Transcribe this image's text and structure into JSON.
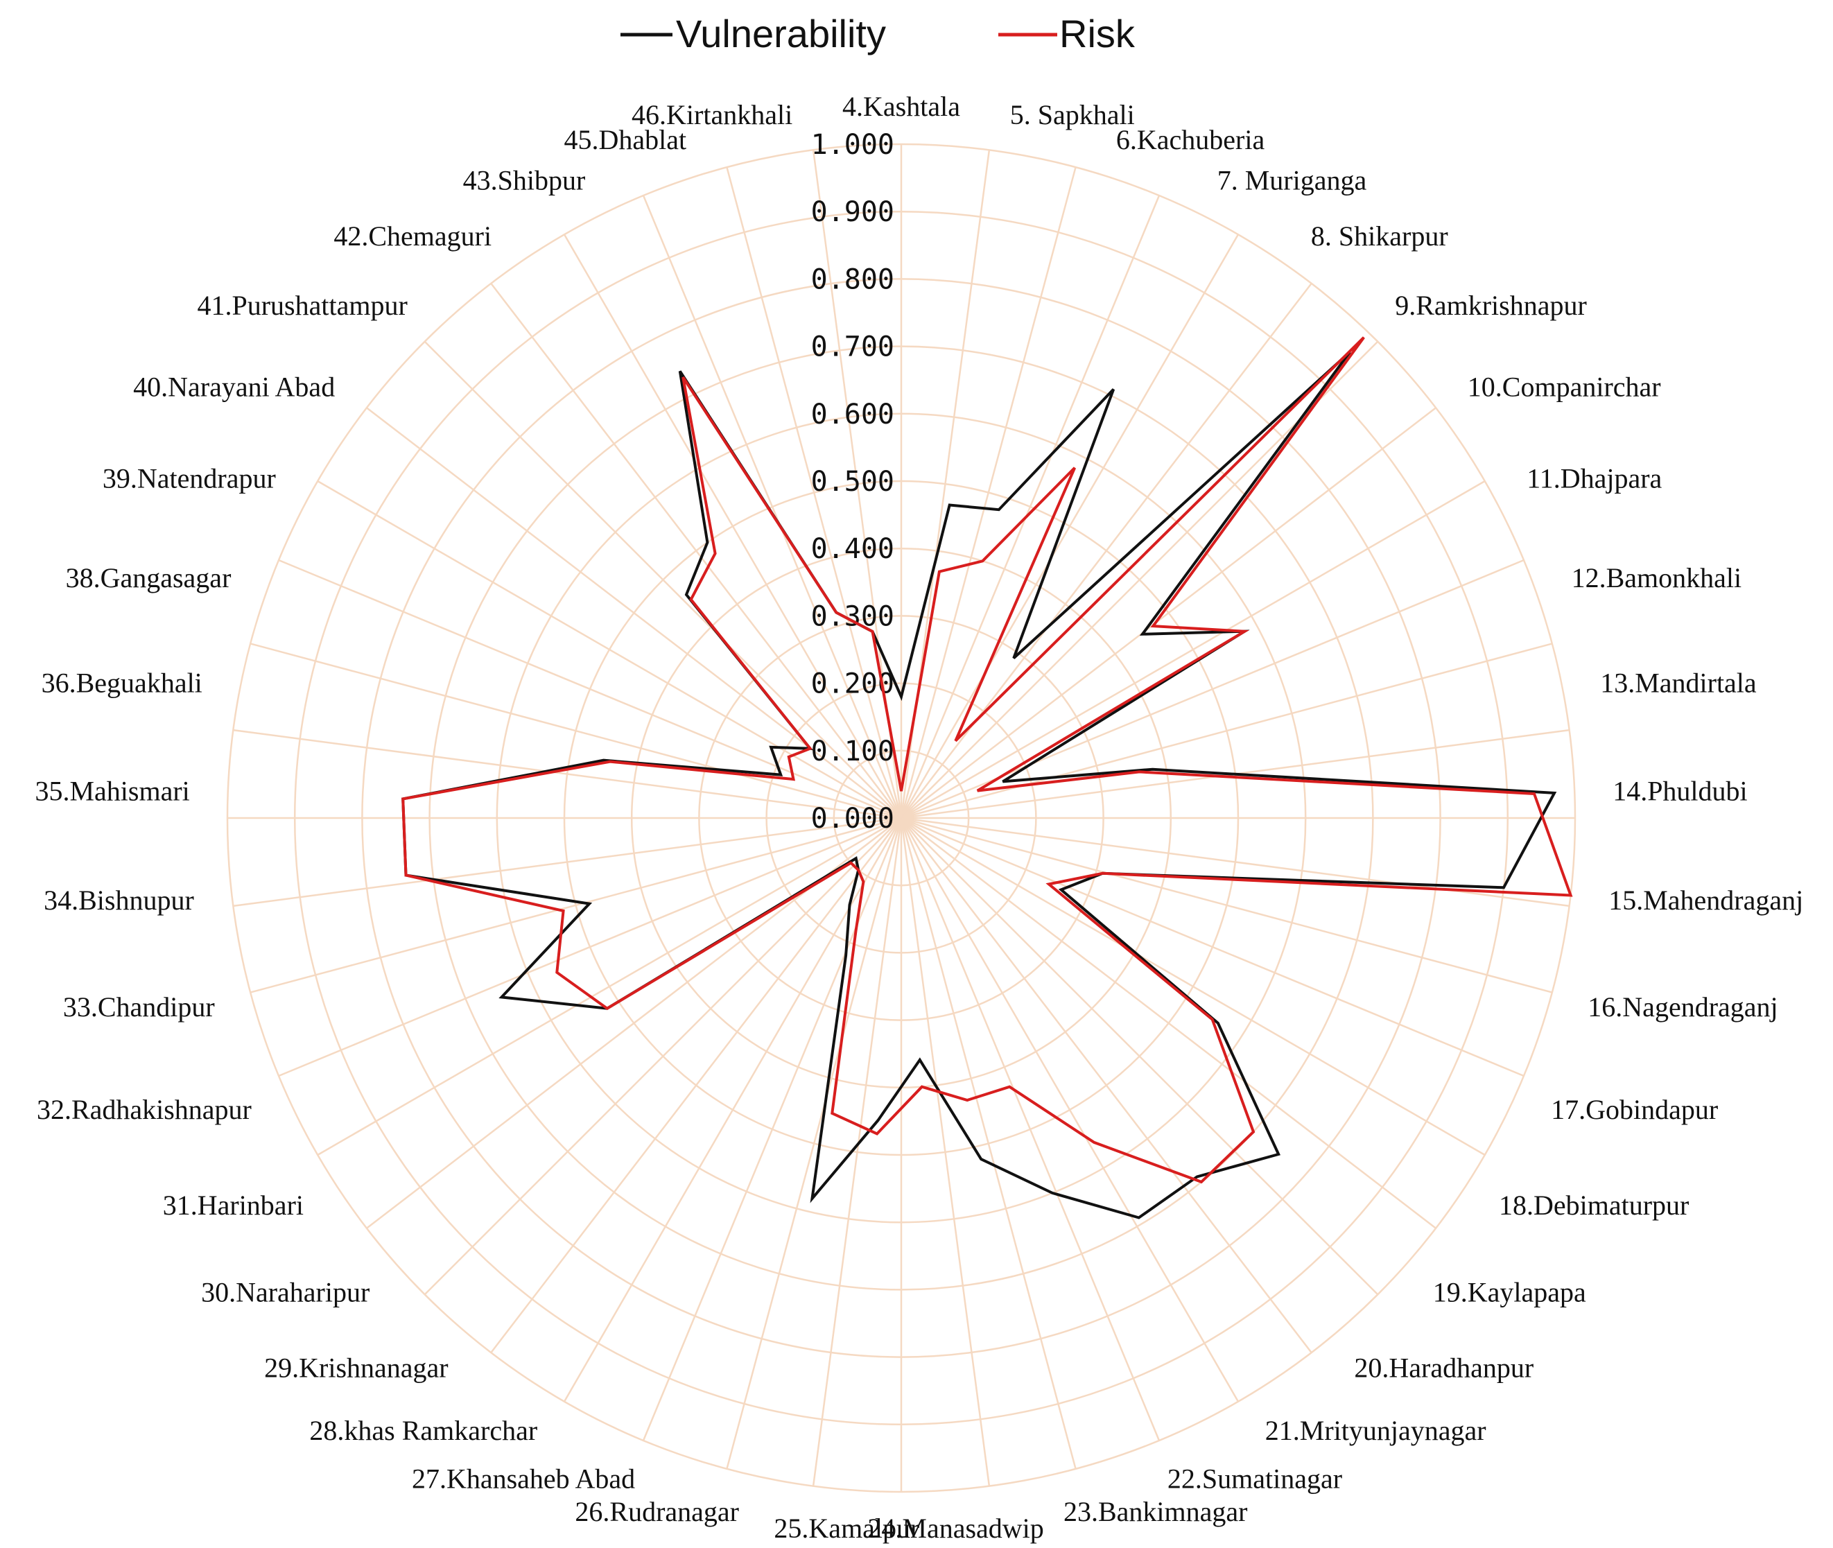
{
  "chart_data": {
    "type": "radar",
    "title": "",
    "rlim": [
      0,
      1
    ],
    "ticks": [
      "0.000",
      "0.100",
      "0.200",
      "0.300",
      "0.400",
      "0.500",
      "0.600",
      "0.700",
      "0.800",
      "0.900",
      "1.000"
    ],
    "grid": true,
    "legend_position": "top-center",
    "categories": [
      "4.Kashtala",
      "5. Sapkhali",
      "6.Kachuberia",
      "7. Muriganga",
      "8. Shikarpur",
      "9.Ramkrishnapur",
      "10.Companirchar",
      "11.Dhajpara",
      "12.Bamonkhali",
      "13.Mandirtala",
      "14.Phuldubi",
      "15.Mahendraganj",
      "16.Nagendraganj",
      "17.Gobindapur",
      "18.Debimaturpur",
      "19.Kaylapapa",
      "20.Haradhanpur",
      "21.Mrityunjaynagar",
      "22.Sumatinagar",
      "23.Bankimnagar",
      "24.Manasadwip",
      "25.Kamalpur",
      "26.Rudranagar",
      "27.Khansaheb Abad",
      "28.khas Ramkarchar",
      "29.Krishnanagar",
      "30.Naraharipur",
      "31.Harinbari",
      "32.Radhakishnapur",
      "33.Chandipur",
      "34.Bishnupur",
      "35.Mahismari",
      "36.Beguakhali",
      "38.Gangasagar",
      "39.Natendrapur",
      "40.Narayani Abad",
      "41.Purushattampur",
      "42.Chemaguri",
      "43.Shibpur",
      "45.Dhablat",
      "46.Kirtankhali"
    ],
    "series": [
      {
        "name": "Vulnerability",
        "color": "#111111",
        "values": [
          0.18,
          0.47,
          0.48,
          0.71,
          0.29,
          0.96,
          0.45,
          0.58,
          0.16,
          0.38,
          0.97,
          0.9,
          0.31,
          0.26,
          0.56,
          0.75,
          0.69,
          0.69,
          0.6,
          0.52,
          0.36,
          0.45,
          0.58,
          0.22,
          0.15,
          0.1,
          0.09,
          0.52,
          0.65,
          0.48,
          0.74,
          0.74,
          0.45,
          0.19,
          0.22,
          0.17,
          0.46,
          0.5,
          0.74,
          0.32,
          0.28
        ]
      },
      {
        "name": "Risk",
        "color": "#d81e1e",
        "values": [
          0.04,
          0.37,
          0.4,
          0.58,
          0.14,
          0.99,
          0.47,
          0.58,
          0.12,
          0.36,
          0.94,
          1.0,
          0.31,
          0.24,
          0.55,
          0.7,
          0.7,
          0.56,
          0.43,
          0.43,
          0.4,
          0.47,
          0.45,
          0.18,
          0.11,
          0.1,
          0.1,
          0.52,
          0.56,
          0.52,
          0.74,
          0.74,
          0.44,
          0.17,
          0.19,
          0.17,
          0.45,
          0.48,
          0.73,
          0.32,
          0.28
        ]
      }
    ]
  }
}
